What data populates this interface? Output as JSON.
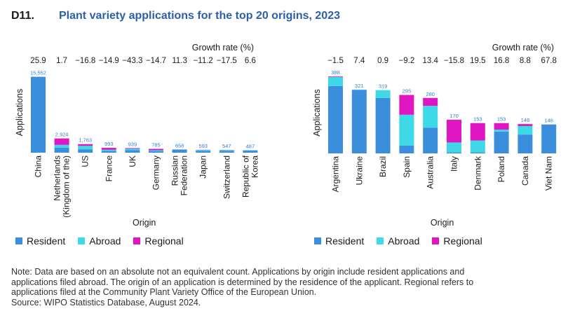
{
  "figure": {
    "label": "D11.",
    "title": "Plant variety applications for the top 20 origins, 2023"
  },
  "colors": {
    "resident": "#3b8edb",
    "abroad": "#3dd9e6",
    "regional": "#e016c3"
  },
  "chart_data": [
    {
      "type": "bar",
      "stacked": true,
      "growth_header": "Growth rate (%)",
      "ylabel": "Applications",
      "xlabel": "Origin",
      "categories": [
        "China",
        "Netherlands\n(Kingdom of the)",
        "US",
        "France",
        "UK",
        "Germany",
        "Russian\nFederation",
        "Japan",
        "Switzerland",
        "Republic of\nKorea"
      ],
      "growth_rates": [
        "25.9",
        "1.7",
        "−16.8",
        "−14.9",
        "−43.3",
        "−14.7",
        "11.3",
        "−11.2",
        "−17.5",
        "6.6"
      ],
      "totals": [
        15552,
        2924,
        1763,
        993,
        939,
        785,
        658,
        593,
        547,
        487
      ],
      "total_labels": [
        "15,552",
        "2,924",
        "1,763",
        "993",
        "939",
        "785",
        "658",
        "593",
        "547",
        "487"
      ],
      "series": [
        {
          "name": "Resident",
          "values": [
            15552,
            1000,
            700,
            350,
            500,
            300,
            658,
            400,
            350,
            487
          ]
        },
        {
          "name": "Abroad",
          "values": [
            0,
            600,
            700,
            250,
            300,
            200,
            0,
            150,
            150,
            0
          ]
        },
        {
          "name": "Regional",
          "values": [
            0,
            1324,
            363,
            393,
            139,
            285,
            0,
            43,
            47,
            0
          ]
        }
      ],
      "ylim": [
        0,
        16500
      ],
      "legend": [
        "Resident",
        "Abroad",
        "Regional"
      ]
    },
    {
      "type": "bar",
      "stacked": true,
      "growth_header": "Growth rate (%)",
      "ylabel": "Applications",
      "xlabel": "Origin",
      "categories": [
        "Argentina",
        "Ukraine",
        "Brazil",
        "Spain",
        "Australia",
        "Italy",
        "Denmark",
        "Poland",
        "Canada",
        "Viet Nam"
      ],
      "growth_rates": [
        "−1.5",
        "7.4",
        "0.9",
        "−9.2",
        "13.4",
        "−15.8",
        "19.5",
        "16.8",
        "8.8",
        "67.8"
      ],
      "totals": [
        388,
        321,
        319,
        295,
        280,
        170,
        153,
        153,
        148,
        146
      ],
      "total_labels": [
        "388",
        "321",
        "319",
        "295",
        "280",
        "170",
        "153",
        "153",
        "148",
        "146"
      ],
      "series": [
        {
          "name": "Resident",
          "values": [
            340,
            321,
            280,
            40,
            130,
            5,
            5,
            110,
            95,
            146
          ]
        },
        {
          "name": "Abroad",
          "values": [
            45,
            0,
            39,
            155,
            110,
            50,
            60,
            10,
            43,
            0
          ]
        },
        {
          "name": "Regional",
          "values": [
            3,
            0,
            0,
            100,
            40,
            115,
            88,
            33,
            10,
            0
          ]
        }
      ],
      "ylim": [
        0,
        410
      ],
      "legend": [
        "Resident",
        "Abroad",
        "Regional"
      ]
    }
  ],
  "note": {
    "lines": [
      "Note: Data are based on an absolute not an equivalent count. Applications by origin include resident applications and",
      "applications filed abroad. The origin of an application is determined by the residence of the applicant. Regional refers to",
      "applications filed at the Community Plant Variety Office of the European Union.",
      "Source: WIPO Statistics Database, August 2024."
    ]
  }
}
